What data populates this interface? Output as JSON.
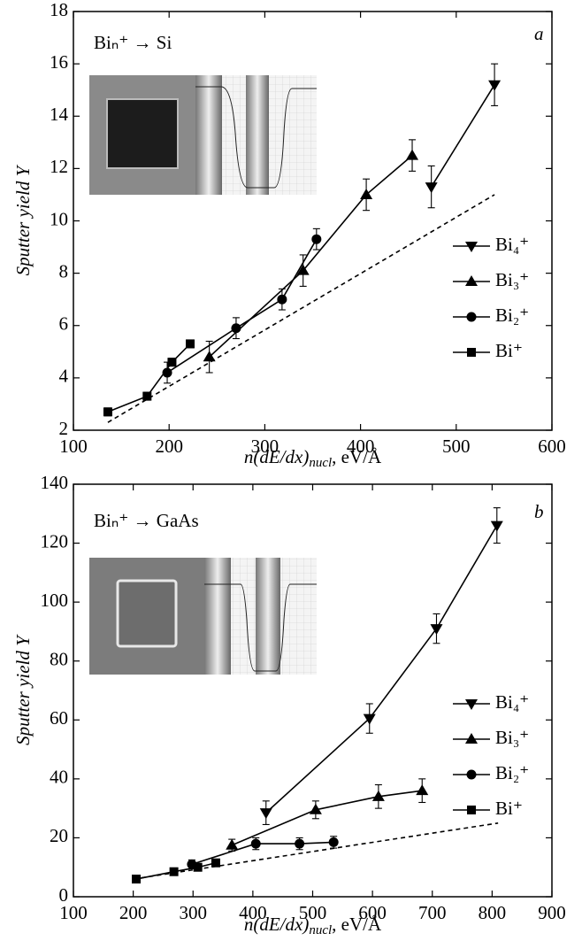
{
  "chart_data": [
    {
      "type": "line",
      "panel": "a",
      "annotation": "Biₙ⁺ → Si",
      "xlabel": {
        "main": "n(dE/dx)",
        "sub": "nucl",
        "unit": ", eV/Å"
      },
      "ylabel": "Sputter yield Y",
      "xlim": [
        100,
        600
      ],
      "xticks": [
        100,
        200,
        300,
        400,
        500,
        600
      ],
      "ylim": [
        2,
        18
      ],
      "yticks": [
        2,
        4,
        6,
        8,
        10,
        12,
        14,
        16,
        18
      ],
      "series": [
        {
          "name": "Bi⁺",
          "marker": "square",
          "color": "#000000",
          "x": [
            136,
            177,
            203,
            222
          ],
          "values": [
            2.7,
            3.3,
            4.6,
            5.3
          ],
          "errors": [
            0.15,
            0.15,
            0.15,
            0.15
          ]
        },
        {
          "name": "Bi₂⁺",
          "marker": "circle",
          "color": "#000000",
          "x": [
            198,
            270,
            318,
            354
          ],
          "values": [
            4.2,
            5.9,
            7.0,
            9.3
          ],
          "errors": [
            0.4,
            0.4,
            0.4,
            0.4
          ]
        },
        {
          "name": "Bi₃⁺",
          "marker": "triangle-up",
          "color": "#000000",
          "x": [
            242,
            340,
            406,
            454
          ],
          "values": [
            4.8,
            8.1,
            11.0,
            12.5
          ],
          "errors": [
            0.6,
            0.6,
            0.6,
            0.6
          ]
        },
        {
          "name": "Bi₄⁺",
          "marker": "triangle-down",
          "color": "#000000",
          "x": [
            474,
            540
          ],
          "values": [
            11.3,
            15.2
          ],
          "errors": [
            0.8,
            0.8
          ]
        }
      ],
      "fit_line": {
        "x": [
          136,
          540
        ],
        "values": [
          2.3,
          11.0
        ]
      }
    },
    {
      "type": "line",
      "panel": "b",
      "annotation": "Biₙ⁺ → GaAs",
      "xlabel": {
        "main": "n(dE/dx)",
        "sub": "nucl",
        "unit": ", eV/Å"
      },
      "ylabel": "Sputter yield Y",
      "xlim": [
        100,
        900
      ],
      "xticks": [
        100,
        200,
        300,
        400,
        500,
        600,
        700,
        800,
        900
      ],
      "ylim": [
        0,
        140
      ],
      "yticks": [
        0,
        20,
        40,
        60,
        80,
        100,
        120,
        140
      ],
      "series": [
        {
          "name": "Bi⁺",
          "marker": "square",
          "color": "#000000",
          "x": [
            205,
            268,
            308,
            338
          ],
          "values": [
            6,
            8.5,
            10,
            11.5
          ],
          "errors": [
            0.5,
            0.5,
            0.5,
            0.5
          ]
        },
        {
          "name": "Bi₂⁺",
          "marker": "circle",
          "color": "#000000",
          "x": [
            298,
            405,
            478,
            535
          ],
          "values": [
            11,
            18,
            18,
            18.5
          ],
          "errors": [
            1.5,
            2,
            2,
            2
          ]
        },
        {
          "name": "Bi₃⁺",
          "marker": "triangle-up",
          "color": "#000000",
          "x": [
            365,
            505,
            610,
            683
          ],
          "values": [
            17.5,
            29.5,
            34,
            36
          ],
          "errors": [
            2,
            3,
            4,
            4
          ]
        },
        {
          "name": "Bi₄⁺",
          "marker": "triangle-down",
          "color": "#000000",
          "x": [
            422,
            595,
            707,
            808
          ],
          "values": [
            28.5,
            60.5,
            91,
            126
          ],
          "errors": [
            4,
            5,
            5,
            6
          ]
        }
      ],
      "fit_line": {
        "x": [
          200,
          810
        ],
        "values": [
          6,
          25
        ]
      }
    }
  ]
}
